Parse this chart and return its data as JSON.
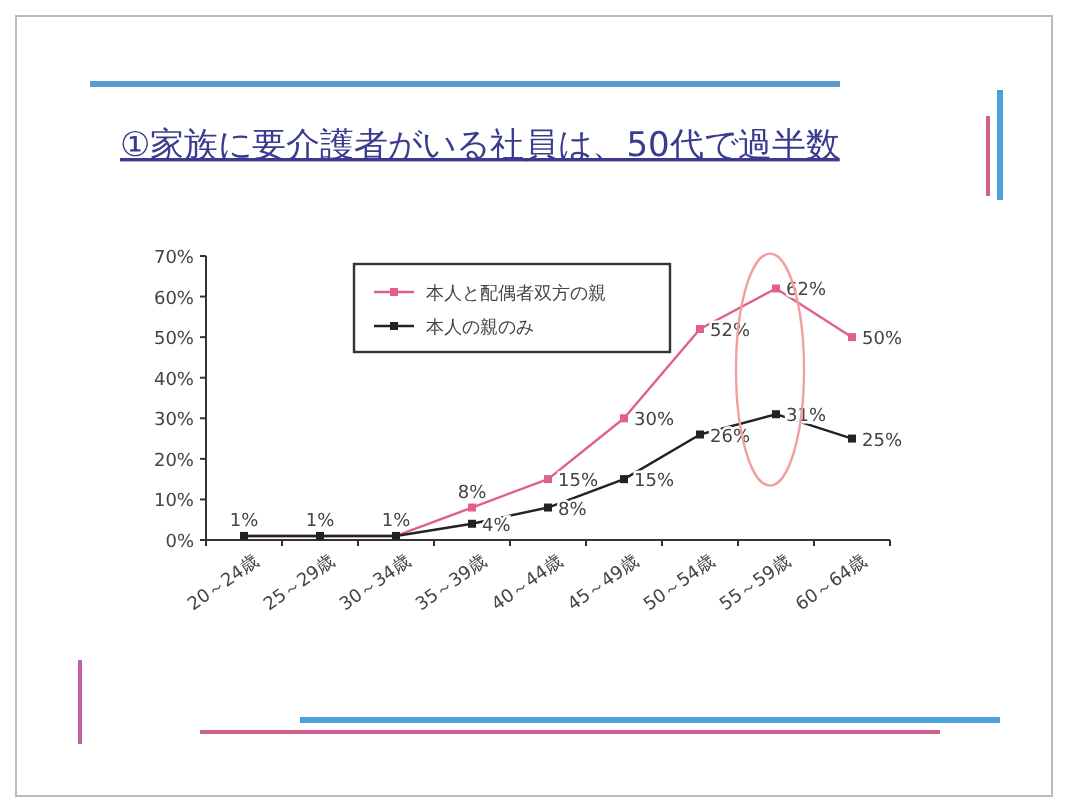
{
  "chart_data": {
    "type": "line",
    "title": "①家族に要介護者がいる社員は、50代で過半数",
    "categories": [
      "20～24歳",
      "25～29歳",
      "30～34歳",
      "35～39歳",
      "40～44歳",
      "45～49歳",
      "50～54歳",
      "55～59歳",
      "60～64歳"
    ],
    "series": [
      {
        "name": "本人と配偶者双方の親",
        "color": "#e0608c",
        "values": [
          1,
          1,
          1,
          8,
          15,
          30,
          52,
          62,
          50
        ],
        "value_labels": [
          "1%",
          "1%",
          "1%",
          "8%",
          "15%",
          "30%",
          "52%",
          "62%",
          "50%"
        ]
      },
      {
        "name": "本人の親のみ",
        "color": "#222222",
        "values": [
          1,
          1,
          1,
          4,
          8,
          15,
          26,
          31,
          25
        ],
        "value_labels": [
          null,
          null,
          null,
          "4%",
          "8%",
          "15%",
          "26%",
          "31%",
          "25%"
        ]
      }
    ],
    "ylim": [
      0,
      70
    ],
    "yticks": [
      {
        "value": 0,
        "label": "0%"
      },
      {
        "value": 10,
        "label": "10%"
      },
      {
        "value": 20,
        "label": "20%"
      },
      {
        "value": 30,
        "label": "30%"
      },
      {
        "value": 40,
        "label": "40%"
      },
      {
        "value": 50,
        "label": "50%"
      },
      {
        "value": 60,
        "label": "60%"
      },
      {
        "value": 70,
        "label": "70%"
      }
    ],
    "data_labels": true,
    "legend": "top left",
    "marker": "square",
    "line_style": "solid",
    "grid": false
  }
}
